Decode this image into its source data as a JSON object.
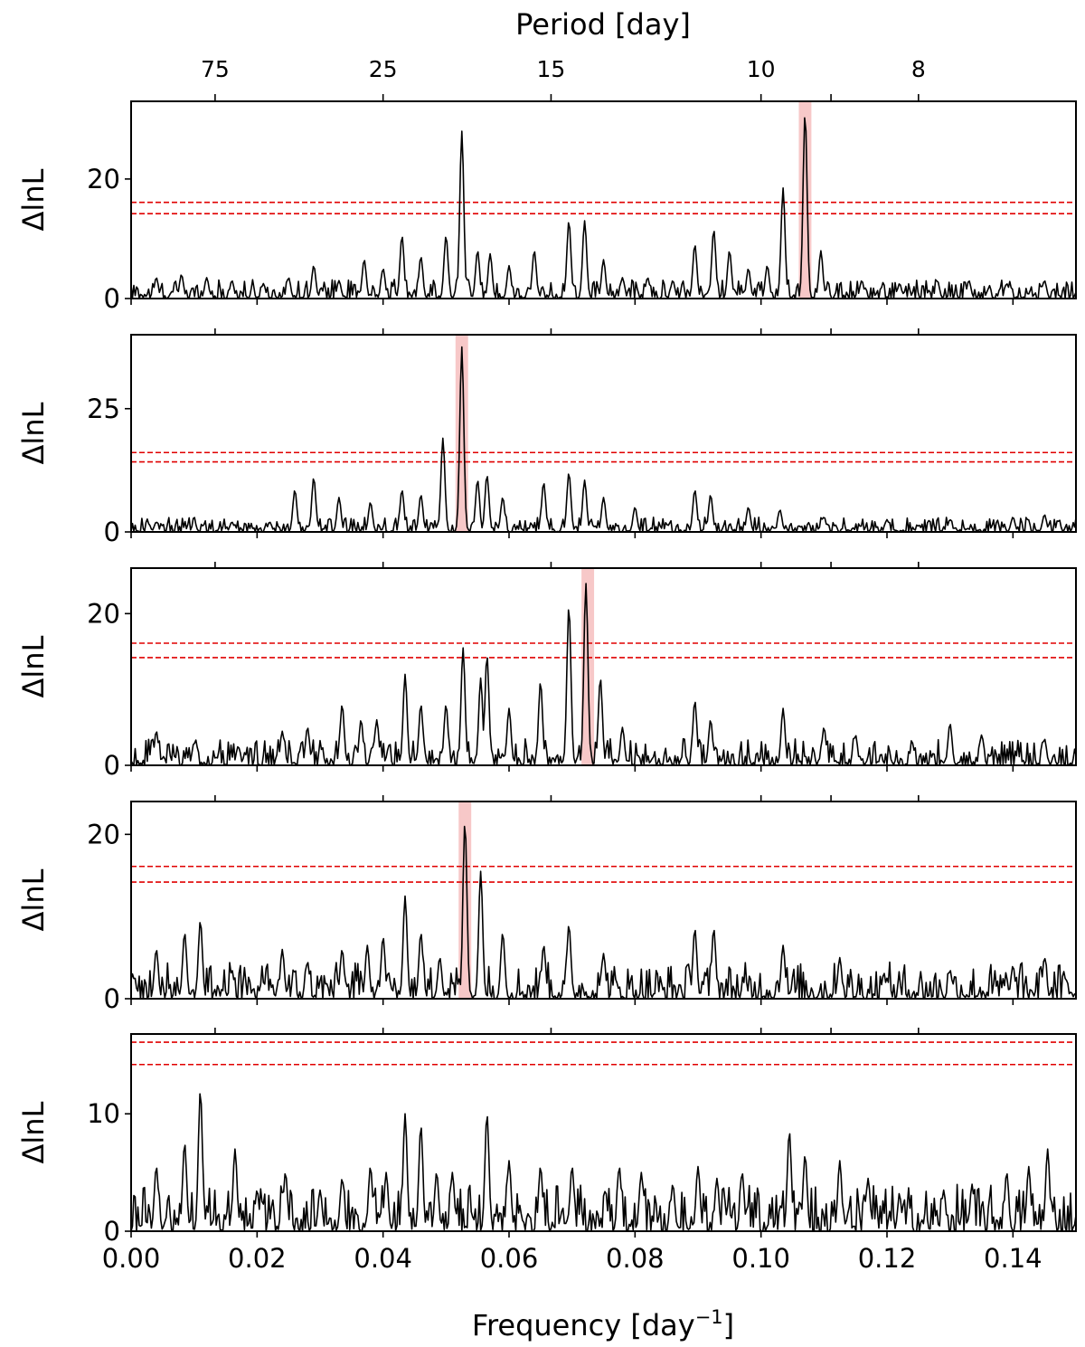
{
  "chart_data": {
    "type": "line",
    "shared_x": {
      "label_main": "Frequency [day",
      "label_sup": "−1",
      "label_end": "]",
      "range": [
        0,
        0.15
      ],
      "ticks": [
        0.0,
        0.02,
        0.04,
        0.06,
        0.08,
        0.1,
        0.12,
        0.14
      ],
      "tick_labels": [
        "0.00",
        "0.02",
        "0.04",
        "0.06",
        "0.08",
        "0.10",
        "0.12",
        "0.14"
      ]
    },
    "top_axis": {
      "label": "Period [day]",
      "tick_periods": [
        75,
        25,
        15,
        10,
        8
      ],
      "tick_labels": [
        "75",
        "25",
        "15",
        "10",
        "8"
      ],
      "minor_periods": [
        9
      ]
    },
    "ylabel": "ΔlnL",
    "thresholds": [
      14.2,
      16.1
    ],
    "panels": [
      {
        "ylim": [
          0,
          33
        ],
        "yticks": [
          0,
          20
        ],
        "ytick_labels": [
          "0",
          "20"
        ],
        "highlight": [
          0.106,
          0.108
        ],
        "peaks": [
          [
            0.004,
            3.5
          ],
          [
            0.008,
            4.0
          ],
          [
            0.012,
            3.5
          ],
          [
            0.016,
            3.0
          ],
          [
            0.021,
            2.5
          ],
          [
            0.025,
            3.5
          ],
          [
            0.029,
            5.5
          ],
          [
            0.033,
            3.0
          ],
          [
            0.037,
            6.5
          ],
          [
            0.04,
            5.0
          ],
          [
            0.043,
            10.5
          ],
          [
            0.046,
            7.0
          ],
          [
            0.05,
            10.5
          ],
          [
            0.0525,
            28.0
          ],
          [
            0.055,
            8.0
          ],
          [
            0.057,
            7.5
          ],
          [
            0.06,
            5.5
          ],
          [
            0.064,
            8.0
          ],
          [
            0.0695,
            13.0
          ],
          [
            0.072,
            13.0
          ],
          [
            0.075,
            6.5
          ],
          [
            0.078,
            3.5
          ],
          [
            0.082,
            3.5
          ],
          [
            0.086,
            3.0
          ],
          [
            0.0895,
            9.0
          ],
          [
            0.0925,
            11.5
          ],
          [
            0.095,
            8.0
          ],
          [
            0.098,
            5.0
          ],
          [
            0.101,
            5.5
          ],
          [
            0.1035,
            18.5
          ],
          [
            0.107,
            31.0
          ],
          [
            0.1095,
            8.0
          ],
          [
            0.116,
            3.0
          ],
          [
            0.122,
            2.5
          ],
          [
            0.128,
            3.0
          ],
          [
            0.133,
            3.0
          ],
          [
            0.139,
            2.5
          ],
          [
            0.145,
            3.0
          ]
        ]
      },
      {
        "ylim": [
          0,
          40
        ],
        "yticks": [
          0,
          25
        ],
        "ytick_labels": [
          "0",
          "25"
        ],
        "highlight": [
          0.0515,
          0.0535
        ],
        "peaks": [
          [
            0.004,
            2.0
          ],
          [
            0.01,
            2.0
          ],
          [
            0.016,
            2.0
          ],
          [
            0.022,
            2.0
          ],
          [
            0.026,
            8.5
          ],
          [
            0.029,
            11.0
          ],
          [
            0.033,
            7.0
          ],
          [
            0.038,
            6.0
          ],
          [
            0.043,
            8.5
          ],
          [
            0.046,
            7.5
          ],
          [
            0.0495,
            19.0
          ],
          [
            0.0525,
            37.5
          ],
          [
            0.055,
            10.5
          ],
          [
            0.0565,
            11.5
          ],
          [
            0.059,
            7.0
          ],
          [
            0.0655,
            10.0
          ],
          [
            0.0695,
            12.0
          ],
          [
            0.072,
            10.5
          ],
          [
            0.075,
            7.0
          ],
          [
            0.08,
            5.0
          ],
          [
            0.0895,
            8.5
          ],
          [
            0.092,
            7.5
          ],
          [
            0.098,
            5.0
          ],
          [
            0.103,
            4.5
          ],
          [
            0.11,
            3.0
          ],
          [
            0.12,
            2.5
          ],
          [
            0.13,
            2.5
          ],
          [
            0.14,
            3.0
          ],
          [
            0.145,
            3.5
          ]
        ]
      },
      {
        "ylim": [
          0,
          26
        ],
        "yticks": [
          0,
          20
        ],
        "ytick_labels": [
          "0",
          "20"
        ],
        "highlight": [
          0.0715,
          0.0735
        ],
        "peaks": [
          [
            0.004,
            4.5
          ],
          [
            0.01,
            3.0
          ],
          [
            0.017,
            2.5
          ],
          [
            0.024,
            4.5
          ],
          [
            0.028,
            5.0
          ],
          [
            0.0335,
            8.0
          ],
          [
            0.0365,
            6.0
          ],
          [
            0.039,
            6.0
          ],
          [
            0.0435,
            12.0
          ],
          [
            0.046,
            8.0
          ],
          [
            0.05,
            8.0
          ],
          [
            0.0527,
            15.5
          ],
          [
            0.0555,
            11.5
          ],
          [
            0.0565,
            14.5
          ],
          [
            0.06,
            7.5
          ],
          [
            0.065,
            11.0
          ],
          [
            0.0695,
            21.0
          ],
          [
            0.0722,
            24.0
          ],
          [
            0.0745,
            11.5
          ],
          [
            0.078,
            5.0
          ],
          [
            0.0895,
            8.5
          ],
          [
            0.092,
            6.0
          ],
          [
            0.1035,
            7.5
          ],
          [
            0.11,
            5.0
          ],
          [
            0.115,
            4.0
          ],
          [
            0.124,
            3.0
          ],
          [
            0.13,
            5.5
          ],
          [
            0.135,
            4.0
          ],
          [
            0.145,
            3.5
          ]
        ]
      },
      {
        "ylim": [
          0,
          24
        ],
        "yticks": [
          0,
          20
        ],
        "ytick_labels": [
          "0",
          "20"
        ],
        "highlight": [
          0.052,
          0.054
        ],
        "peaks": [
          [
            0.004,
            6.0
          ],
          [
            0.0085,
            8.0
          ],
          [
            0.011,
            9.5
          ],
          [
            0.016,
            3.5
          ],
          [
            0.024,
            6.0
          ],
          [
            0.028,
            4.5
          ],
          [
            0.0335,
            6.0
          ],
          [
            0.0375,
            6.5
          ],
          [
            0.04,
            7.5
          ],
          [
            0.0435,
            12.5
          ],
          [
            0.046,
            8.0
          ],
          [
            0.049,
            5.0
          ],
          [
            0.053,
            21.5
          ],
          [
            0.0555,
            15.5
          ],
          [
            0.059,
            8.0
          ],
          [
            0.0655,
            6.5
          ],
          [
            0.0695,
            9.0
          ],
          [
            0.075,
            5.5
          ],
          [
            0.0895,
            8.5
          ],
          [
            0.0925,
            8.5
          ],
          [
            0.1035,
            6.5
          ],
          [
            0.1125,
            5.0
          ],
          [
            0.12,
            2.5
          ],
          [
            0.13,
            3.5
          ],
          [
            0.14,
            4.0
          ],
          [
            0.145,
            5.0
          ]
        ]
      },
      {
        "ylim": [
          0,
          16.8
        ],
        "yticks": [
          0,
          10
        ],
        "ytick_labels": [
          "0",
          "10"
        ],
        "highlight": null,
        "peaks": [
          [
            0.004,
            5.5
          ],
          [
            0.0085,
            7.5
          ],
          [
            0.011,
            12.0
          ],
          [
            0.0165,
            7.0
          ],
          [
            0.02,
            3.5
          ],
          [
            0.0245,
            5.0
          ],
          [
            0.03,
            3.5
          ],
          [
            0.0335,
            4.5
          ],
          [
            0.038,
            5.5
          ],
          [
            0.0405,
            5.0
          ],
          [
            0.0435,
            10.0
          ],
          [
            0.046,
            9.0
          ],
          [
            0.0485,
            5.0
          ],
          [
            0.051,
            5.0
          ],
          [
            0.0565,
            10.0
          ],
          [
            0.06,
            6.0
          ],
          [
            0.065,
            5.5
          ],
          [
            0.07,
            5.5
          ],
          [
            0.0775,
            5.5
          ],
          [
            0.081,
            5.0
          ],
          [
            0.086,
            4.0
          ],
          [
            0.09,
            5.5
          ],
          [
            0.093,
            4.5
          ],
          [
            0.097,
            5.0
          ],
          [
            0.1045,
            8.5
          ],
          [
            0.107,
            6.5
          ],
          [
            0.1125,
            6.0
          ],
          [
            0.117,
            4.5
          ],
          [
            0.122,
            3.0
          ],
          [
            0.129,
            3.5
          ],
          [
            0.1335,
            4.0
          ],
          [
            0.139,
            5.0
          ],
          [
            0.1425,
            5.5
          ],
          [
            0.1455,
            7.0
          ]
        ]
      }
    ]
  }
}
